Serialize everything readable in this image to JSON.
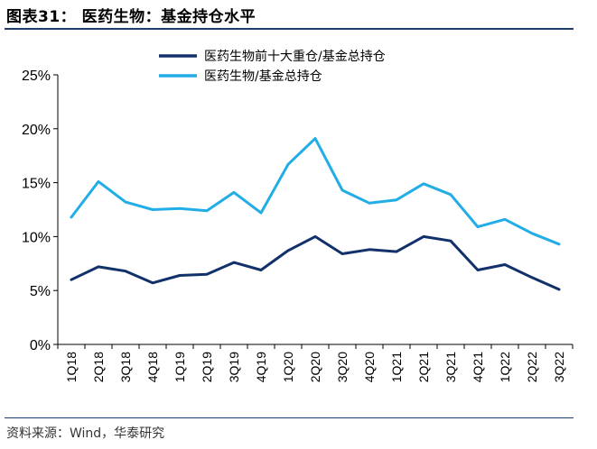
{
  "header": {
    "title": "图表31：  医药生物：基金持仓水平"
  },
  "footer": {
    "source": "资料来源：Wind，华泰研究"
  },
  "chart_data": {
    "type": "line",
    "title": "医药生物：基金持仓水平",
    "categories": [
      "1Q18",
      "2Q18",
      "3Q18",
      "4Q18",
      "1Q19",
      "2Q19",
      "3Q19",
      "4Q19",
      "1Q20",
      "2Q20",
      "3Q20",
      "4Q20",
      "1Q21",
      "2Q21",
      "3Q21",
      "4Q21",
      "1Q22",
      "2Q22",
      "3Q22"
    ],
    "ylim": [
      0,
      25
    ],
    "yticks": [
      0,
      5,
      10,
      15,
      20,
      25
    ],
    "ytick_labels": [
      "0%",
      "5%",
      "10%",
      "15%",
      "20%",
      "25%"
    ],
    "xlabel": "",
    "ylabel": "",
    "legend_position": "top-center",
    "grid": false,
    "series": [
      {
        "name": "医药生物前十大重仓/基金总持仓",
        "color": "#12316a",
        "values": [
          6.0,
          7.2,
          6.8,
          5.7,
          6.4,
          6.5,
          7.6,
          6.9,
          8.7,
          10.0,
          8.4,
          8.8,
          8.6,
          10.0,
          9.6,
          6.9,
          7.4,
          6.2,
          5.1
        ]
      },
      {
        "name": "医药生物/基金总持仓",
        "color": "#22ade6",
        "values": [
          11.8,
          15.1,
          13.2,
          12.5,
          12.6,
          12.4,
          14.1,
          12.2,
          16.7,
          19.1,
          14.3,
          13.1,
          13.4,
          14.9,
          13.9,
          10.9,
          11.6,
          10.3,
          9.3
        ]
      }
    ]
  }
}
